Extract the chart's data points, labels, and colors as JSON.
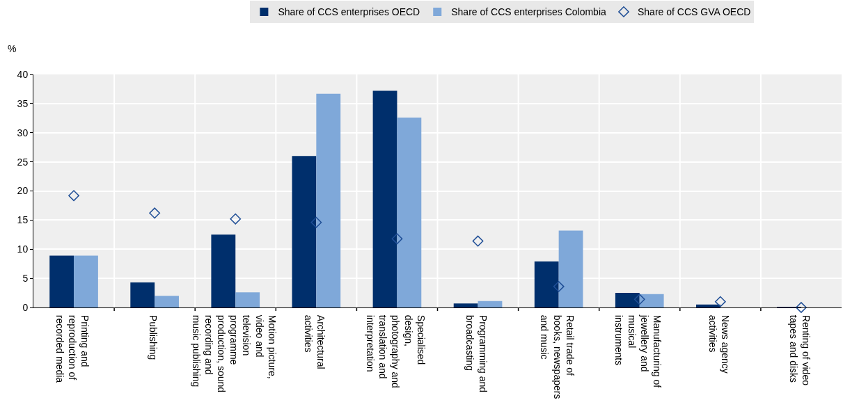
{
  "chart_data": {
    "type": "bar",
    "ylabel": "%",
    "categories": [
      "Printing and reproduction of recorded media",
      "Publishing",
      "Motion picture, video and television programme production, sound recording and music publishing",
      "Architectural activities",
      "Specialised design, photography and translation and interpretation",
      "Programming and broadcasting",
      "Retail trade of books, newspapers and music",
      "Manufacturing of jewellery and musical instruments",
      "News agency activities",
      "Renting of video tapes and disks"
    ],
    "series": [
      {
        "name": "Share of CCS enterprises OECD",
        "color": "#002f6c",
        "values": [
          8.9,
          4.3,
          12.5,
          26.0,
          37.2,
          0.7,
          7.9,
          2.5,
          0.5,
          0.1
        ]
      },
      {
        "name": "Share of CCS enterprises Colombia",
        "color": "#7fa8d9",
        "values": [
          8.9,
          2.0,
          2.6,
          36.7,
          32.6,
          1.1,
          13.2,
          2.3,
          0.0,
          0.0
        ]
      },
      {
        "name": "Share of CCS GVA OECD",
        "type": "scatter",
        "marker": "diamond",
        "color": "#1f4e96",
        "values": [
          19.2,
          16.2,
          15.2,
          14.6,
          11.8,
          11.4,
          3.6,
          1.4,
          1.0,
          0.0
        ]
      }
    ],
    "ylim": [
      0,
      40
    ],
    "yticks": [
      0,
      5,
      10,
      15,
      20,
      25,
      30,
      35,
      40
    ],
    "grid": true,
    "legend": "top"
  }
}
